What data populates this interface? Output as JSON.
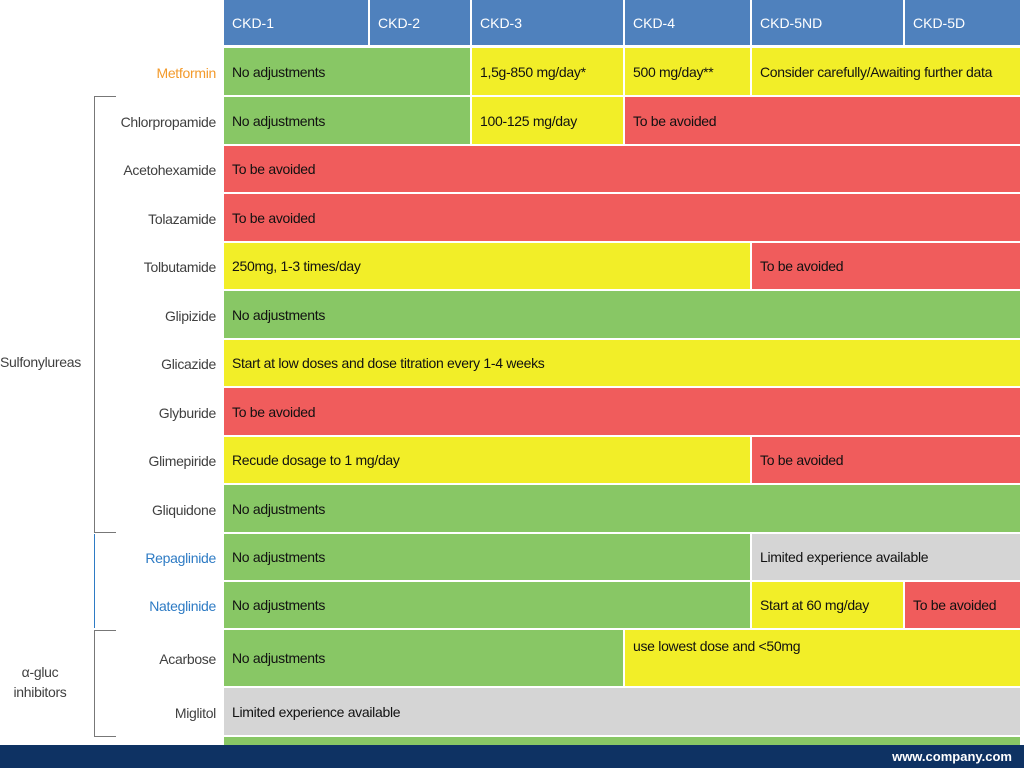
{
  "header": [
    "CKD-1",
    "CKD-2",
    "CKD-3",
    "CKD-4",
    "CKD-5ND",
    "CKD-5D"
  ],
  "rows": [
    {
      "label": "Metformin",
      "label_color": "#f39a2b",
      "cells": [
        {
          "text": "No adjustments",
          "color": "green",
          "span": 2
        },
        {
          "text": "1,5g-850 mg/day*",
          "color": "yellow",
          "span": 1
        },
        {
          "text": "500 mg/day**",
          "color": "yellow",
          "span": 1
        },
        {
          "text": "Consider carefully/Awaiting further data",
          "color": "yellow",
          "span": 2
        }
      ]
    },
    {
      "label": "Chlorpropamide",
      "label_color": "#404040",
      "cells": [
        {
          "text": "No adjustments",
          "color": "green",
          "span": 2
        },
        {
          "text": "100-125 mg/day",
          "color": "yellow",
          "span": 1
        },
        {
          "text": "To be avoided",
          "color": "red",
          "span": 3
        }
      ]
    },
    {
      "label": "Acetohexamide",
      "label_color": "#404040",
      "cells": [
        {
          "text": "To be avoided",
          "color": "red",
          "span": 6
        }
      ]
    },
    {
      "label": "Tolazamide",
      "label_color": "#404040",
      "cells": [
        {
          "text": "To be avoided",
          "color": "red",
          "span": 6
        }
      ]
    },
    {
      "label": "Tolbutamide",
      "label_color": "#404040",
      "cells": [
        {
          "text": "250mg, 1-3 times/day",
          "color": "yellow",
          "span": 4
        },
        {
          "text": "To be avoided",
          "color": "red",
          "span": 2
        }
      ]
    },
    {
      "label": "Glipizide",
      "label_color": "#404040",
      "cells": [
        {
          "text": "No adjustments",
          "color": "green",
          "span": 6
        }
      ]
    },
    {
      "label": "Glicazide",
      "label_color": "#404040",
      "cells": [
        {
          "text": "Start at low doses and dose titration every 1-4 weeks",
          "color": "yellow",
          "span": 6
        }
      ]
    },
    {
      "label": "Glyburide",
      "label_color": "#404040",
      "cells": [
        {
          "text": "To be avoided",
          "color": "red",
          "span": 6
        }
      ]
    },
    {
      "label": "Glimepiride",
      "label_color": "#404040",
      "cells": [
        {
          "text": "Recude dosage to 1 mg/day",
          "color": "yellow",
          "span": 4
        },
        {
          "text": "To be avoided",
          "color": "red",
          "span": 2
        }
      ]
    },
    {
      "label": "Gliquidone",
      "label_color": "#404040",
      "cells": [
        {
          "text": "No adjustments",
          "color": "green",
          "span": 6
        }
      ]
    },
    {
      "label": "Repaglinide",
      "label_color": "#2e7bc4",
      "cells": [
        {
          "text": "No adjustments",
          "color": "green",
          "span": 4
        },
        {
          "text": "Limited experience available",
          "color": "gray",
          "span": 2
        }
      ]
    },
    {
      "label": "Nateglinide",
      "label_color": "#2e7bc4",
      "cells": [
        {
          "text": "No adjustments",
          "color": "green",
          "span": 4
        },
        {
          "text": "Start at 60 mg/day",
          "color": "yellow",
          "span": 1
        },
        {
          "text": "To be avoided",
          "color": "red",
          "span": 1
        }
      ]
    },
    {
      "label": "Acarbose",
      "label_color": "#404040",
      "cells": [
        {
          "text": "No adjustments",
          "color": "green",
          "span": 3
        },
        {
          "text": "use lowest dose and <50mg",
          "color": "yellow",
          "span": 3,
          "align": "top"
        }
      ]
    },
    {
      "label": "Miglitol",
      "label_color": "#404040",
      "cells": [
        {
          "text": "Limited experience available",
          "color": "gray",
          "span": 6
        }
      ]
    }
  ],
  "groups": {
    "sulfonylureas": "Sulfonylureas",
    "alpha_gluc_line1": "α-gluc",
    "alpha_gluc_line2": "inhibitors"
  },
  "footer": {
    "url": "www.company.com"
  },
  "colors": {
    "header": "#4f81bd",
    "green": "#88c765",
    "yellow": "#f2ee28",
    "red": "#f05c5c",
    "gray": "#d5d5d5",
    "footer": "#0e3263"
  }
}
